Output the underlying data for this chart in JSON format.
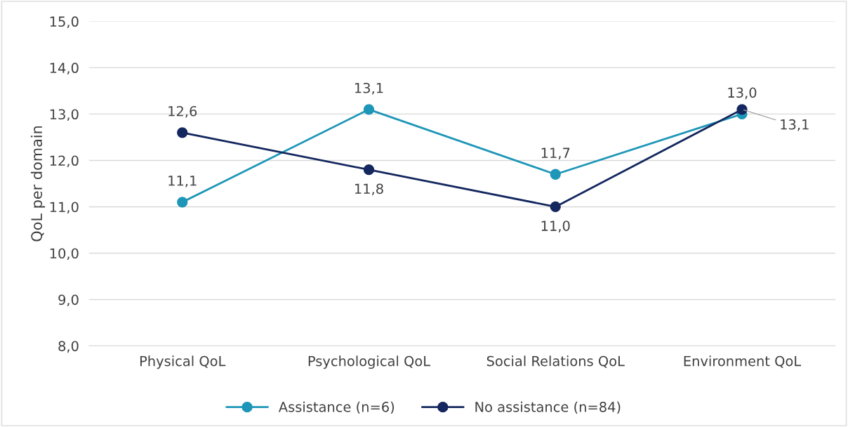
{
  "chart_data": {
    "type": "line",
    "ylabel": "QoL per domain",
    "categories": [
      "Physical QoL",
      "Psychological QoL",
      "Social Relations QoL",
      "Environment QoL"
    ],
    "series": [
      {
        "name": "Assistance (n=6)",
        "color": "#1e96b8",
        "values": [
          11.1,
          13.1,
          11.7,
          13.0
        ],
        "value_labels": [
          "11,1",
          "13,1",
          "11,7",
          "13,0"
        ]
      },
      {
        "name": "No assistance (n=84)",
        "color": "#14275e",
        "values": [
          12.6,
          11.8,
          11.0,
          13.1
        ],
        "value_labels": [
          "12,6",
          "11,8",
          "11,0",
          "13,1"
        ]
      }
    ],
    "ylim": [
      8,
      15
    ],
    "yticks": [
      {
        "value": 8,
        "label": "8,0"
      },
      {
        "value": 9,
        "label": "9,0"
      },
      {
        "value": 10,
        "label": "10,0"
      },
      {
        "value": 11,
        "label": "11,0"
      },
      {
        "value": 12,
        "label": "12,0"
      },
      {
        "value": 13,
        "label": "13,0"
      },
      {
        "value": 14,
        "label": "14,0"
      },
      {
        "value": 15,
        "label": "15,0"
      }
    ],
    "grid": "y",
    "legend": "bottom",
    "marker": "circle",
    "line_style": "solid"
  }
}
